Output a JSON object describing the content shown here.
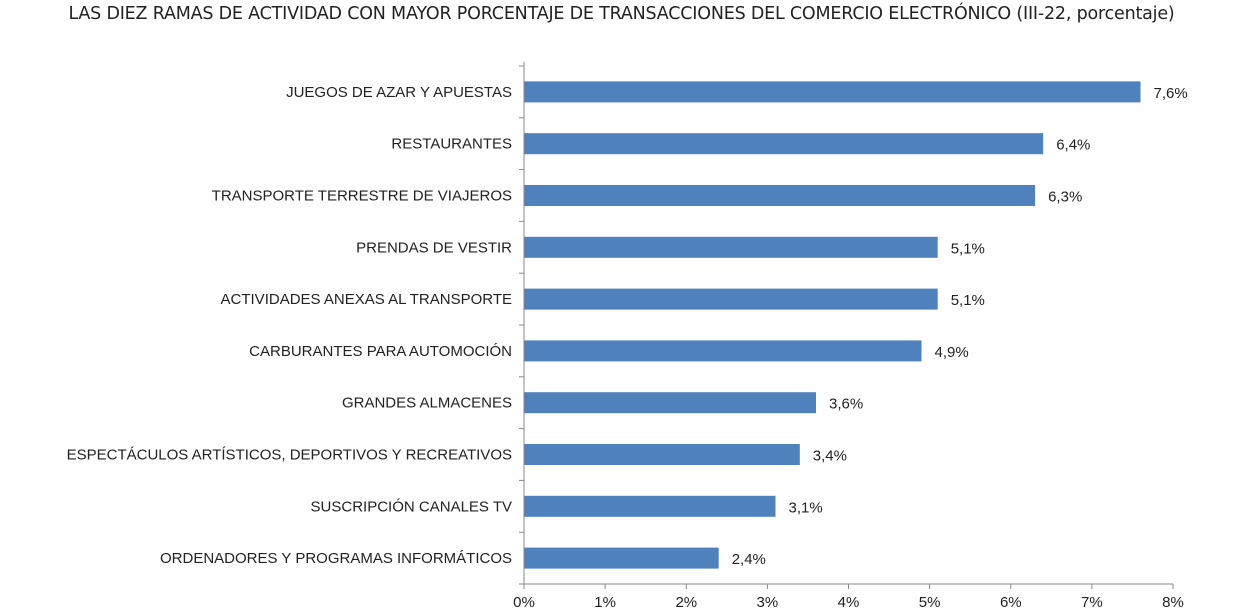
{
  "chart_data": {
    "type": "bar",
    "orientation": "horizontal",
    "title": "LAS DIEZ RAMAS DE ACTIVIDAD CON MAYOR PORCENTAJE DE TRANSACCIONES DEL COMERCIO ELECTRÓNICO (III-22, porcentaje)",
    "categories": [
      "JUEGOS DE AZAR Y APUESTAS",
      "RESTAURANTES",
      "TRANSPORTE TERRESTRE DE VIAJEROS",
      "PRENDAS DE VESTIR",
      "ACTIVIDADES ANEXAS AL TRANSPORTE",
      "CARBURANTES PARA AUTOMOCIÓN",
      "GRANDES ALMACENES",
      "ESPECTÁCULOS ARTÍSTICOS, DEPORTIVOS Y RECREATIVOS",
      "SUSCRIPCIÓN CANALES TV",
      "ORDENADORES Y PROGRAMAS INFORMÁTICOS"
    ],
    "values": [
      7.6,
      6.4,
      6.3,
      5.1,
      5.1,
      4.9,
      3.6,
      3.4,
      3.1,
      2.4
    ],
    "value_labels": [
      "7,6%",
      "6,4%",
      "6,3%",
      "5,1%",
      "5,1%",
      "4,9%",
      "3,6%",
      "3,4%",
      "3,1%",
      "2,4%"
    ],
    "xlim": [
      0,
      8
    ],
    "x_ticks": [
      "0%",
      "1%",
      "2%",
      "3%",
      "4%",
      "5%",
      "6%",
      "7%",
      "8%"
    ],
    "xlabel": "",
    "ylabel": "",
    "grid": false,
    "legend": "none",
    "bar_color": "#4f81bd",
    "axis_color": "#888888"
  }
}
